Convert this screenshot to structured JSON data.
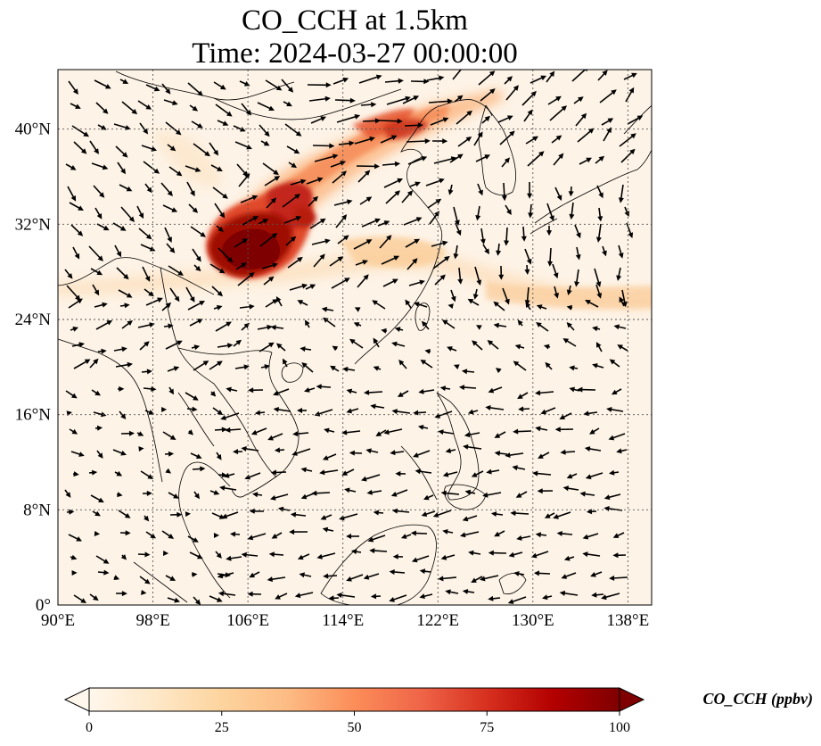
{
  "title": {
    "line1": "CO_CCH at 1.5km",
    "line2": "Time: 2024-03-27 00:00:00"
  },
  "map": {
    "lon_range": [
      90,
      140
    ],
    "lat_range": [
      0,
      45
    ],
    "gridlines": "dotted",
    "lon_ticks": [
      {
        "value": 90,
        "label": "90°E"
      },
      {
        "value": 98,
        "label": "98°E"
      },
      {
        "value": 106,
        "label": "106°E"
      },
      {
        "value": 114,
        "label": "114°E"
      },
      {
        "value": 122,
        "label": "122°E"
      },
      {
        "value": 130,
        "label": "130°E"
      },
      {
        "value": 138,
        "label": "138°E"
      }
    ],
    "lat_ticks": [
      {
        "value": 0,
        "label": "0°"
      },
      {
        "value": 8,
        "label": "8°N"
      },
      {
        "value": 16,
        "label": "16°N"
      },
      {
        "value": 24,
        "label": "24°N"
      },
      {
        "value": 32,
        "label": "32°N"
      },
      {
        "value": 40,
        "label": "40°N"
      }
    ]
  },
  "colorbar": {
    "label": "CO_CCH (ppbv)",
    "colormap": "OrRd",
    "range": [
      0,
      100
    ],
    "extend": "both",
    "colors": [
      "#fff7ec",
      "#fee8c8",
      "#fdd49e",
      "#fdbb84",
      "#fc8d59",
      "#ef6548",
      "#d7301f",
      "#b30000",
      "#7f0000"
    ],
    "ticks": [
      {
        "value": 0,
        "label": "0"
      },
      {
        "value": 25,
        "label": "25"
      },
      {
        "value": 50,
        "label": "50"
      },
      {
        "value": 75,
        "label": "75"
      },
      {
        "value": 100,
        "label": "100"
      }
    ]
  }
}
